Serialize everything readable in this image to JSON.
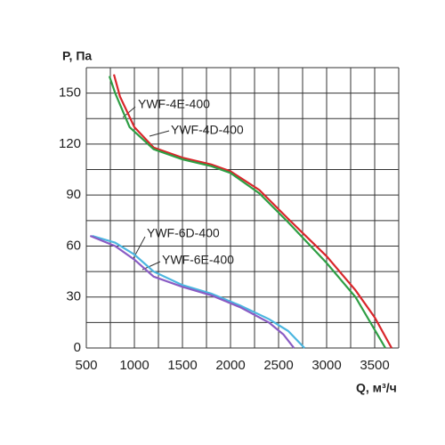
{
  "chart_data": {
    "type": "line",
    "y_label": "P, Па",
    "x_label": "Q, м³/ч",
    "xlim": [
      500,
      3750
    ],
    "ylim": [
      0,
      165
    ],
    "xticks": [
      500,
      1000,
      1500,
      2000,
      2500,
      3000,
      3500
    ],
    "yticks": [
      0,
      30,
      60,
      90,
      120,
      150
    ],
    "x_minor_ticks": [
      750,
      1250,
      1750,
      2250,
      2750,
      3250,
      3750
    ],
    "y_minor_ticks": [
      15,
      45,
      75,
      105,
      135,
      165
    ],
    "grid": true,
    "series": [
      {
        "name": "YWF-4E-400",
        "color": "#d9262b",
        "x": [
          787,
          850,
          1000,
          1200,
          1500,
          1800,
          2000,
          2300,
          2600,
          3000,
          3300,
          3500,
          3676
        ],
        "values": [
          161,
          148,
          130,
          118,
          112,
          108,
          104,
          93,
          76,
          54,
          34,
          18,
          0
        ]
      },
      {
        "name": "YWF-4D-400",
        "color": "#2e9e44",
        "x": [
          740,
          800,
          950,
          1200,
          1500,
          1800,
          2000,
          2300,
          2600,
          3000,
          3300,
          3611
        ],
        "values": [
          160,
          150,
          130,
          117,
          111,
          107,
          103,
          91,
          74,
          50,
          30,
          0
        ]
      },
      {
        "name": "YWF-6D-400",
        "color": "#4bb6e0",
        "x": [
          560,
          800,
          1000,
          1200,
          1500,
          1800,
          2100,
          2400,
          2600,
          2770
        ],
        "values": [
          66,
          62,
          55,
          45,
          37,
          32,
          25,
          17,
          10,
          0
        ]
      },
      {
        "name": "YWF-6E-400",
        "color": "#8a5cc4",
        "x": [
          540,
          800,
          1000,
          1200,
          1500,
          1800,
          2100,
          2400,
          2550,
          2660
        ],
        "values": [
          66,
          60,
          52,
          42,
          36,
          31,
          24,
          15,
          8,
          0
        ]
      }
    ]
  }
}
